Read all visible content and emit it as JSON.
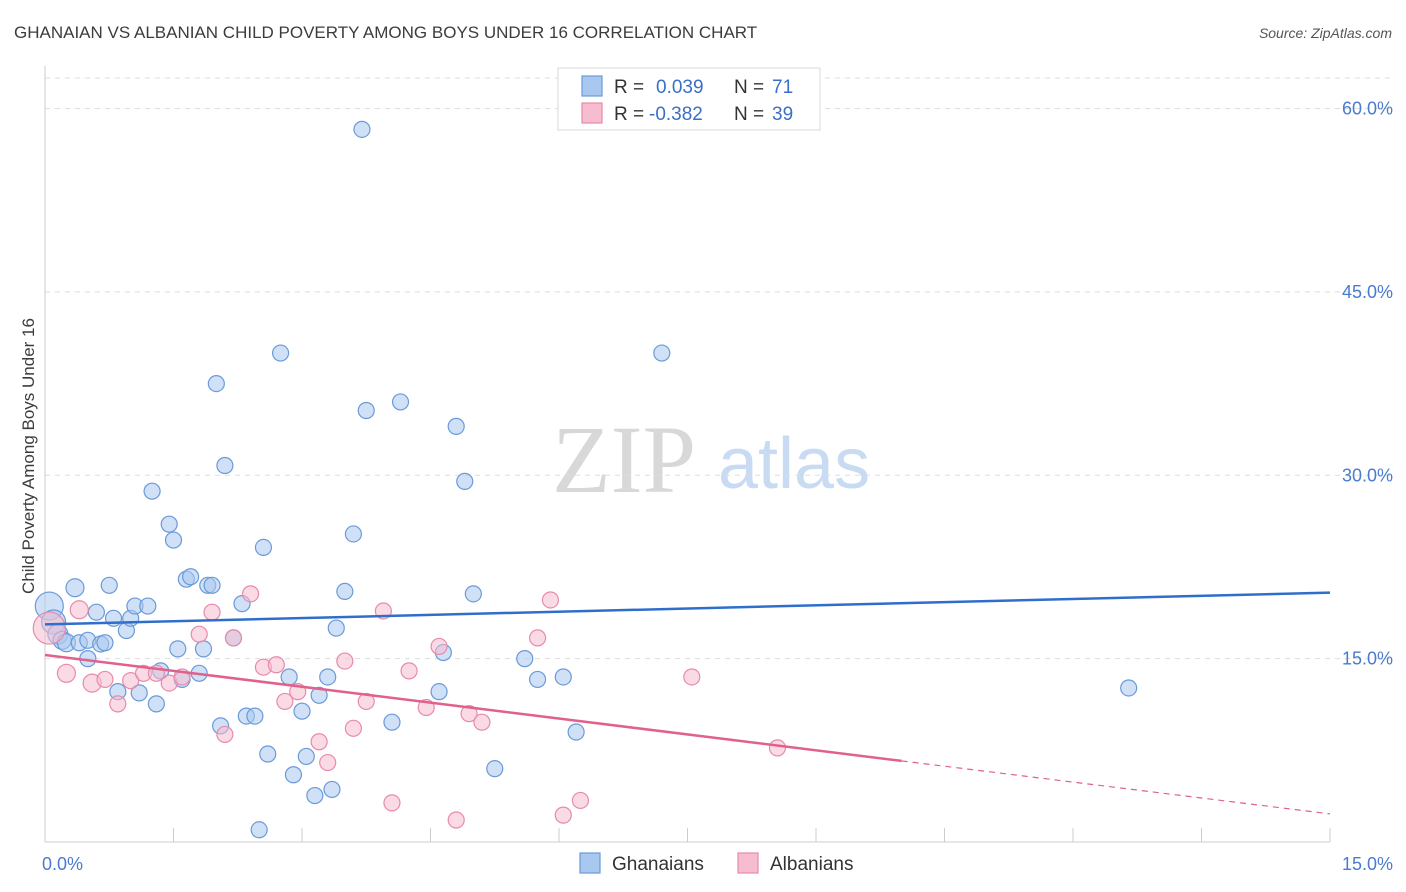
{
  "header": {
    "title": "GHANAIAN VS ALBANIAN CHILD POVERTY AMONG BOYS UNDER 16 CORRELATION CHART",
    "source": "Source: ZipAtlas.com"
  },
  "watermark": {
    "zip": "ZIP",
    "atlas": "atlas"
  },
  "colors": {
    "blue_fill": "#a9c8f0",
    "blue_stroke": "#6a9ad8",
    "blue_line": "#2f6fcb",
    "pink_fill": "#f6bdd0",
    "pink_stroke": "#e88aaa",
    "pink_line": "#e0608e",
    "grid": "#dedede",
    "axis_tick": "#4a7bd0"
  },
  "legend": {
    "rows": [
      {
        "r_label": "R =",
        "r_value": "0.039",
        "n_label": "N =",
        "n_value": "71"
      },
      {
        "r_label": "R =",
        "r_value": "-0.382",
        "n_label": "N =",
        "n_value": "39"
      }
    ]
  },
  "chart_data": {
    "type": "scatter",
    "title": "GHANAIAN VS ALBANIAN CHILD POVERTY AMONG BOYS UNDER 16 CORRELATION CHART",
    "xlabel": "",
    "ylabel": "Child Poverty Among Boys Under 16",
    "xlim": [
      0,
      15
    ],
    "ylim": [
      0,
      62.5
    ],
    "x_ticks": [
      0,
      15
    ],
    "x_tick_labels": [
      "0.0%",
      "15.0%"
    ],
    "y_ticks": [
      15,
      30,
      45,
      60
    ],
    "y_tick_labels": [
      "15.0%",
      "30.0%",
      "45.0%",
      "60.0%"
    ],
    "grid": true,
    "legend_placement": "top-center",
    "series": [
      {
        "name": "Ghanaians",
        "trend": {
          "x": [
            0,
            15
          ],
          "y": [
            17.8,
            20.4
          ],
          "solid_until": 15
        },
        "points": [
          [
            0.05,
            19.3,
            14
          ],
          [
            0.1,
            18.0,
            12
          ],
          [
            0.15,
            17.0,
            10
          ],
          [
            0.2,
            16.5,
            9
          ],
          [
            0.25,
            16.3,
            9
          ],
          [
            0.35,
            20.8,
            9
          ],
          [
            0.4,
            16.3,
            8
          ],
          [
            0.5,
            16.5,
            8
          ],
          [
            0.5,
            15.0,
            8
          ],
          [
            0.6,
            18.8,
            8
          ],
          [
            0.65,
            16.2,
            8
          ],
          [
            0.7,
            16.3,
            8
          ],
          [
            0.75,
            21.0,
            8
          ],
          [
            0.8,
            18.3,
            8
          ],
          [
            0.85,
            12.3,
            8
          ],
          [
            0.95,
            17.3,
            8
          ],
          [
            1.0,
            18.3,
            8
          ],
          [
            1.05,
            19.3,
            8
          ],
          [
            1.1,
            12.2,
            8
          ],
          [
            1.2,
            19.3,
            8
          ],
          [
            1.25,
            28.7,
            8
          ],
          [
            1.3,
            11.3,
            8
          ],
          [
            1.35,
            14.0,
            8
          ],
          [
            1.45,
            26.0,
            8
          ],
          [
            1.5,
            24.7,
            8
          ],
          [
            1.55,
            15.8,
            8
          ],
          [
            1.6,
            13.3,
            8
          ],
          [
            1.65,
            21.5,
            8
          ],
          [
            1.7,
            21.7,
            8
          ],
          [
            1.8,
            13.8,
            8
          ],
          [
            1.85,
            15.8,
            8
          ],
          [
            1.9,
            21.0,
            8
          ],
          [
            1.95,
            21.0,
            8
          ],
          [
            2.0,
            37.5,
            8
          ],
          [
            2.05,
            9.5,
            8
          ],
          [
            2.1,
            30.8,
            8
          ],
          [
            2.2,
            16.7,
            8
          ],
          [
            2.3,
            19.5,
            8
          ],
          [
            2.35,
            10.3,
            8
          ],
          [
            2.45,
            10.3,
            8
          ],
          [
            2.5,
            1.0,
            8
          ],
          [
            2.55,
            24.1,
            8
          ],
          [
            2.6,
            7.2,
            8
          ],
          [
            2.75,
            40.0,
            8
          ],
          [
            2.85,
            13.5,
            8
          ],
          [
            2.9,
            5.5,
            8
          ],
          [
            3.0,
            10.7,
            8
          ],
          [
            3.05,
            7.0,
            8
          ],
          [
            3.15,
            3.8,
            8
          ],
          [
            3.2,
            12.0,
            8
          ],
          [
            3.3,
            13.5,
            8
          ],
          [
            3.35,
            4.3,
            8
          ],
          [
            3.4,
            17.5,
            8
          ],
          [
            3.5,
            20.5,
            8
          ],
          [
            3.6,
            25.2,
            8
          ],
          [
            3.7,
            58.3,
            8
          ],
          [
            3.75,
            35.3,
            8
          ],
          [
            4.05,
            9.8,
            8
          ],
          [
            4.15,
            36.0,
            8
          ],
          [
            4.6,
            12.3,
            8
          ],
          [
            4.65,
            15.5,
            8
          ],
          [
            4.8,
            34.0,
            8
          ],
          [
            4.9,
            29.5,
            8
          ],
          [
            5.0,
            20.3,
            8
          ],
          [
            5.25,
            6.0,
            8
          ],
          [
            5.6,
            15.0,
            8
          ],
          [
            5.75,
            13.3,
            8
          ],
          [
            6.05,
            13.5,
            8
          ],
          [
            6.2,
            9.0,
            8
          ],
          [
            7.2,
            40.0,
            8
          ],
          [
            12.65,
            12.6,
            8
          ]
        ]
      },
      {
        "name": "Albanians",
        "trend": {
          "x": [
            0,
            15
          ],
          "y": [
            15.3,
            2.3
          ],
          "solid_until": 10.0
        },
        "points": [
          [
            0.05,
            17.5,
            16
          ],
          [
            0.25,
            13.8,
            9
          ],
          [
            0.4,
            19.0,
            9
          ],
          [
            0.55,
            13.0,
            9
          ],
          [
            0.7,
            13.3,
            8
          ],
          [
            0.85,
            11.3,
            8
          ],
          [
            1.0,
            13.2,
            8
          ],
          [
            1.15,
            13.8,
            8
          ],
          [
            1.3,
            13.8,
            8
          ],
          [
            1.45,
            13.0,
            8
          ],
          [
            1.6,
            13.5,
            8
          ],
          [
            1.8,
            17.0,
            8
          ],
          [
            1.95,
            18.8,
            8
          ],
          [
            2.1,
            8.8,
            8
          ],
          [
            2.2,
            16.7,
            8
          ],
          [
            2.4,
            20.3,
            8
          ],
          [
            2.55,
            14.3,
            8
          ],
          [
            2.7,
            14.5,
            8
          ],
          [
            2.8,
            11.5,
            8
          ],
          [
            2.95,
            12.3,
            8
          ],
          [
            3.2,
            8.2,
            8
          ],
          [
            3.3,
            6.5,
            8
          ],
          [
            3.5,
            14.8,
            8
          ],
          [
            3.6,
            9.3,
            8
          ],
          [
            3.75,
            11.5,
            8
          ],
          [
            3.95,
            18.9,
            8
          ],
          [
            4.05,
            3.2,
            8
          ],
          [
            4.25,
            14.0,
            8
          ],
          [
            4.45,
            11.0,
            8
          ],
          [
            4.6,
            16.0,
            8
          ],
          [
            4.8,
            1.8,
            8
          ],
          [
            4.95,
            10.5,
            8
          ],
          [
            5.1,
            9.8,
            8
          ],
          [
            5.75,
            16.7,
            8
          ],
          [
            5.9,
            19.8,
            8
          ],
          [
            6.05,
            2.2,
            8
          ],
          [
            6.25,
            3.4,
            8
          ],
          [
            7.55,
            13.5,
            8
          ],
          [
            8.55,
            7.7,
            8
          ]
        ]
      }
    ]
  }
}
